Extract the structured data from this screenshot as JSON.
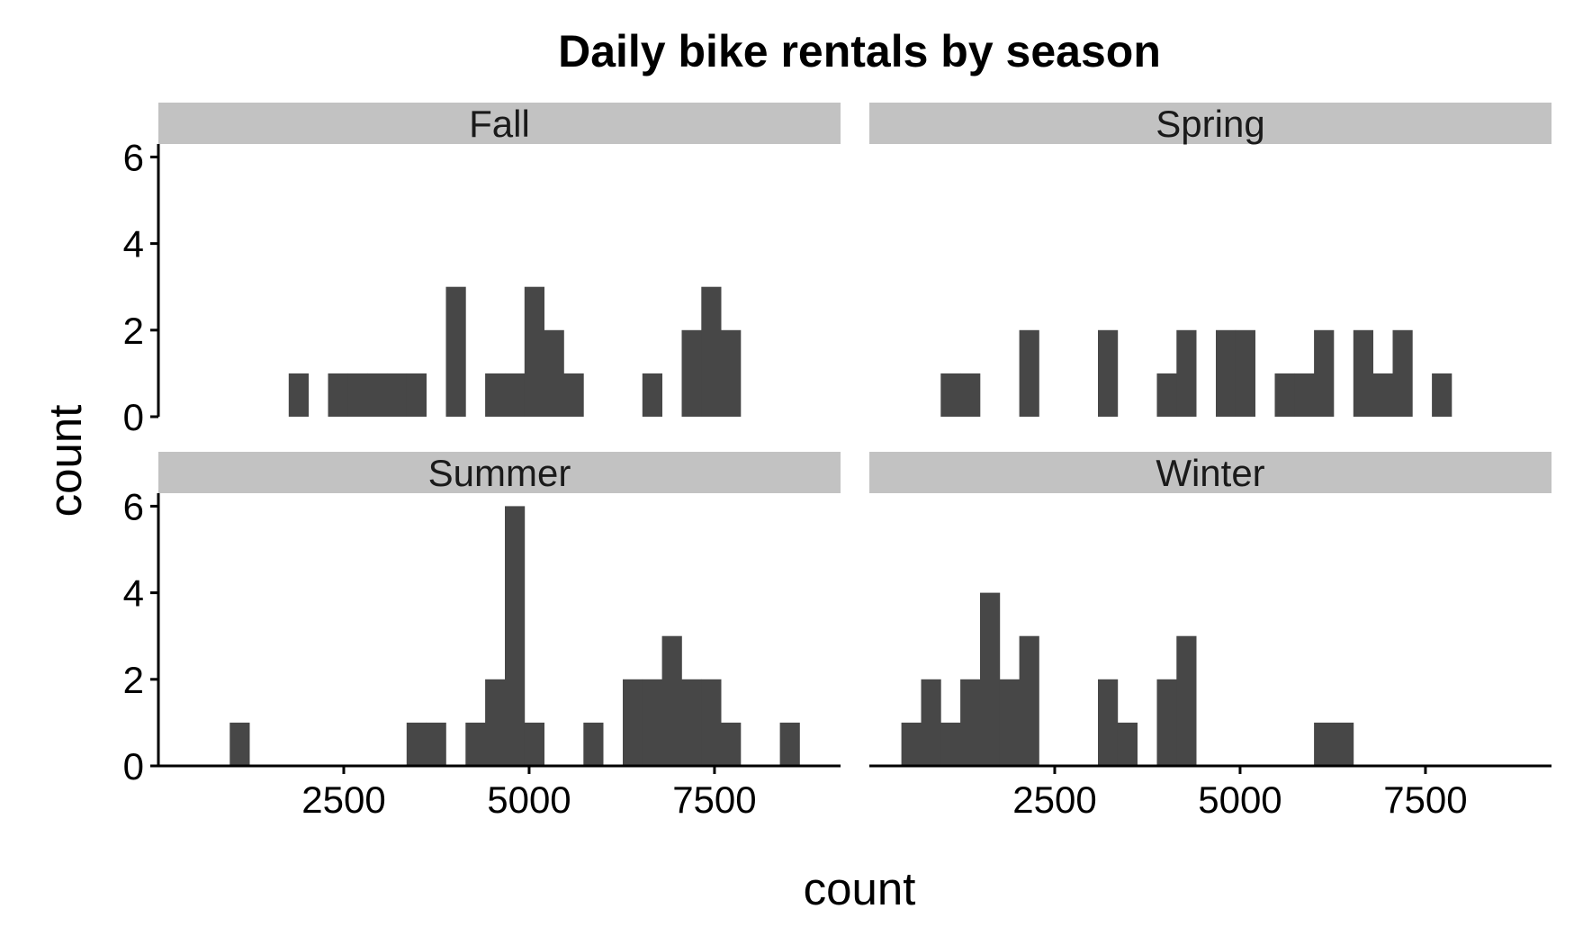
{
  "chart_data": {
    "type": "bar",
    "title": "Daily bike rentals by season",
    "xlabel": "count",
    "ylabel": "count",
    "xlim": [
      0,
      9200
    ],
    "ylim": [
      0,
      6.3
    ],
    "x_ticks": [
      2500,
      5000,
      7500
    ],
    "y_ticks": [
      0,
      2,
      4,
      6
    ],
    "bin_width": 265,
    "bar_color": "#474747",
    "strip_color": "#c2c2c2",
    "facets": [
      {
        "name": "Fall",
        "bins": [
          {
            "x": 1890,
            "count": 1
          },
          {
            "x": 2420,
            "count": 1
          },
          {
            "x": 2685,
            "count": 1
          },
          {
            "x": 2950,
            "count": 1
          },
          {
            "x": 3215,
            "count": 1
          },
          {
            "x": 3480,
            "count": 1
          },
          {
            "x": 4010,
            "count": 3
          },
          {
            "x": 4540,
            "count": 1
          },
          {
            "x": 4805,
            "count": 1
          },
          {
            "x": 5070,
            "count": 3
          },
          {
            "x": 5335,
            "count": 2
          },
          {
            "x": 5600,
            "count": 1
          },
          {
            "x": 6660,
            "count": 1
          },
          {
            "x": 7190,
            "count": 2
          },
          {
            "x": 7455,
            "count": 3
          },
          {
            "x": 7720,
            "count": 2
          }
        ]
      },
      {
        "name": "Spring",
        "bins": [
          {
            "x": 1095,
            "count": 1
          },
          {
            "x": 1360,
            "count": 1
          },
          {
            "x": 2155,
            "count": 2
          },
          {
            "x": 3215,
            "count": 2
          },
          {
            "x": 4010,
            "count": 1
          },
          {
            "x": 4275,
            "count": 2
          },
          {
            "x": 4805,
            "count": 2
          },
          {
            "x": 5070,
            "count": 2
          },
          {
            "x": 5600,
            "count": 1
          },
          {
            "x": 5865,
            "count": 1
          },
          {
            "x": 6130,
            "count": 2
          },
          {
            "x": 6660,
            "count": 2
          },
          {
            "x": 6925,
            "count": 1
          },
          {
            "x": 7190,
            "count": 2
          },
          {
            "x": 7720,
            "count": 1
          }
        ]
      },
      {
        "name": "Summer",
        "bins": [
          {
            "x": 1095,
            "count": 1
          },
          {
            "x": 3480,
            "count": 1
          },
          {
            "x": 3745,
            "count": 1
          },
          {
            "x": 4275,
            "count": 1
          },
          {
            "x": 4540,
            "count": 2
          },
          {
            "x": 4805,
            "count": 6
          },
          {
            "x": 5070,
            "count": 1
          },
          {
            "x": 5865,
            "count": 1
          },
          {
            "x": 6395,
            "count": 2
          },
          {
            "x": 6660,
            "count": 2
          },
          {
            "x": 6925,
            "count": 3
          },
          {
            "x": 7190,
            "count": 2
          },
          {
            "x": 7455,
            "count": 2
          },
          {
            "x": 7720,
            "count": 1
          },
          {
            "x": 8515,
            "count": 1
          }
        ]
      },
      {
        "name": "Winter",
        "bins": [
          {
            "x": 565,
            "count": 1
          },
          {
            "x": 830,
            "count": 2
          },
          {
            "x": 1095,
            "count": 1
          },
          {
            "x": 1360,
            "count": 2
          },
          {
            "x": 1625,
            "count": 4
          },
          {
            "x": 1890,
            "count": 2
          },
          {
            "x": 2155,
            "count": 3
          },
          {
            "x": 3215,
            "count": 2
          },
          {
            "x": 3480,
            "count": 1
          },
          {
            "x": 4010,
            "count": 2
          },
          {
            "x": 4275,
            "count": 3
          },
          {
            "x": 6130,
            "count": 1
          },
          {
            "x": 6395,
            "count": 1
          }
        ]
      }
    ]
  }
}
